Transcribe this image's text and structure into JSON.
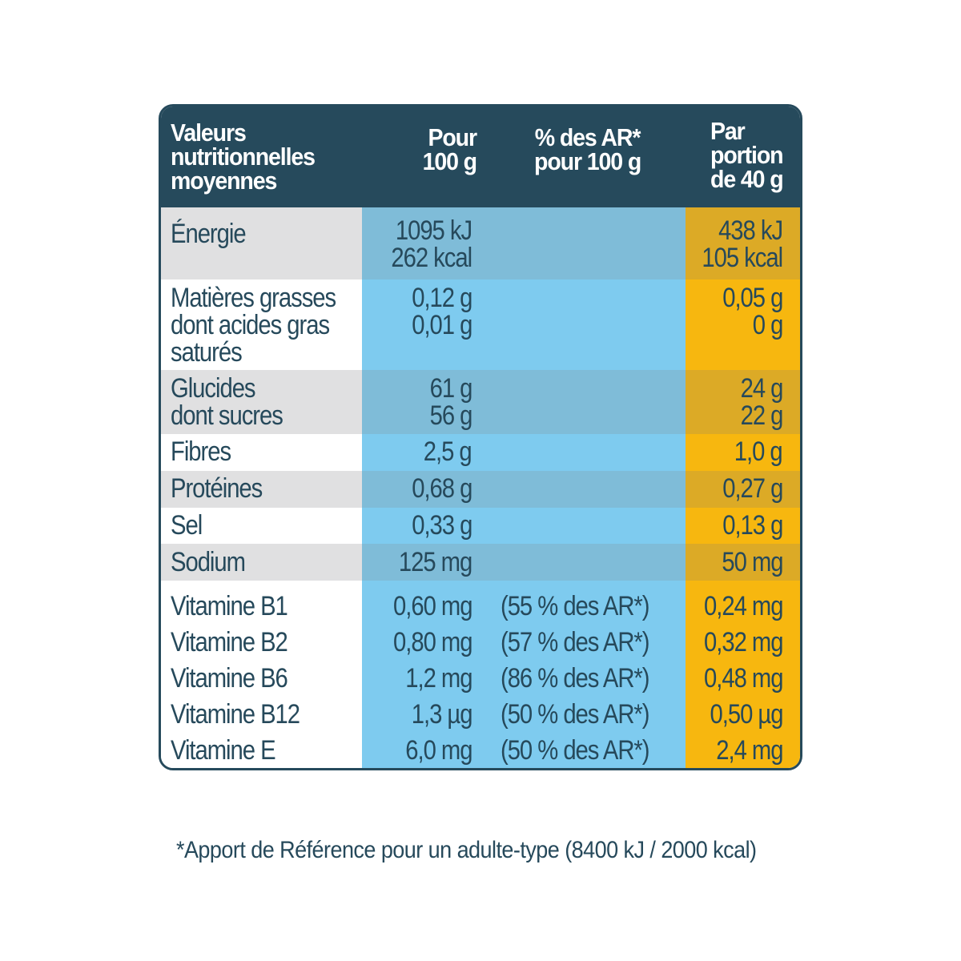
{
  "header": {
    "label_lines": [
      "Valeurs",
      "nutritionnelles",
      "moyennes"
    ],
    "per100_lines": [
      "Pour",
      "100 g"
    ],
    "ar_lines": [
      "% des AR*",
      "pour 100 g"
    ],
    "portion_lines": [
      "Par",
      "portion",
      "de 40 g"
    ]
  },
  "rows": {
    "energie": {
      "label": [
        "Énergie"
      ],
      "per100": [
        "1095 kJ",
        "262 kcal"
      ],
      "portion": [
        "438 kJ",
        "105 kcal"
      ]
    },
    "matieres_grasses": {
      "label": [
        "Matières grasses",
        "dont acides gras",
        "saturés"
      ],
      "per100": [
        "0,12 g",
        "0,01 g"
      ],
      "portion": [
        "0,05 g",
        "0 g"
      ]
    },
    "glucides": {
      "label": [
        "Glucides",
        "dont sucres"
      ],
      "per100": [
        "61 g",
        "56 g"
      ],
      "portion": [
        "24 g",
        "22 g"
      ]
    },
    "fibres": {
      "label": [
        "Fibres"
      ],
      "per100": [
        "2,5 g"
      ],
      "portion": [
        "1,0 g"
      ]
    },
    "proteines": {
      "label": [
        "Protéines"
      ],
      "per100": [
        "0,68 g"
      ],
      "portion": [
        "0,27 g"
      ]
    },
    "sel": {
      "label": [
        "Sel"
      ],
      "per100": [
        "0,33 g"
      ],
      "portion": [
        "0,13 g"
      ]
    },
    "sodium": {
      "label": [
        "Sodium"
      ],
      "per100": [
        "125 mg"
      ],
      "portion": [
        "50 mg"
      ]
    },
    "vitamines": {
      "label": [
        "Vitamine B1",
        "Vitamine B2",
        "Vitamine B6",
        "Vitamine B12",
        "Vitamine E"
      ],
      "per100": [
        "0,60 mg",
        "0,80 mg",
        "1,2 mg",
        "1,3 µg",
        "6,0 mg"
      ],
      "ar": [
        "(55 % des AR*)",
        "(57 % des AR*)",
        "(86 % des AR*)",
        "(50 % des AR*)",
        "(50 % des AR*)"
      ],
      "portion": [
        "0,24 mg",
        "0,32 mg",
        "0,48 mg",
        "0,50 µg",
        "2,4 mg"
      ]
    }
  },
  "footnote": "*Apport de Référence pour un adulte-type (8400 kJ / 2000 kcal)",
  "colors": {
    "header_bg": "#264a5c",
    "label_shaded": "#e0e0e1",
    "blue_shaded": "#7fbcd8",
    "blue_plain": "#7ecbef",
    "orange_shaded": "#dcaa26",
    "orange_plain": "#f7b70f",
    "text": "#26495b"
  }
}
